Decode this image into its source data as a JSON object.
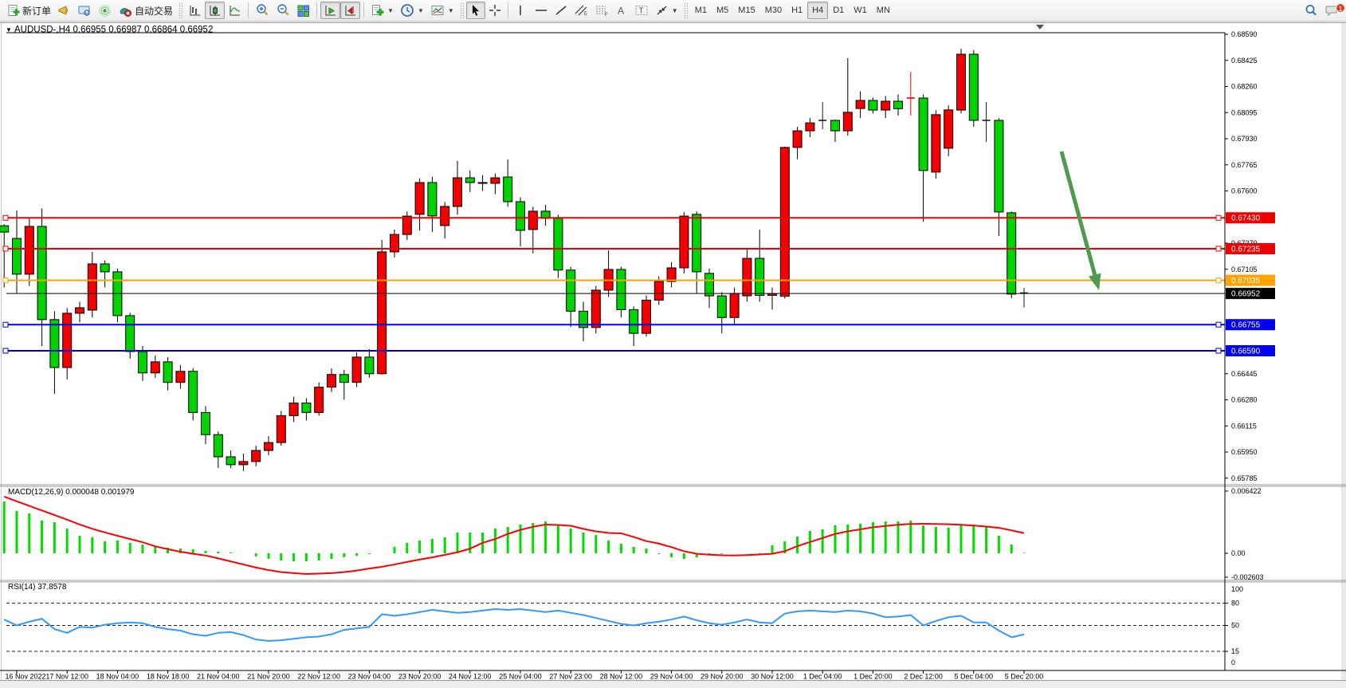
{
  "toolbar": {
    "new_order_label": "新订单",
    "autotrading_label": "自动交易",
    "timeframes": [
      "M1",
      "M5",
      "M15",
      "M30",
      "H1",
      "H4",
      "D1",
      "W1",
      "MN"
    ],
    "active_timeframe": "H4",
    "chat_badge": "1"
  },
  "chart": {
    "title": {
      "dropdown": "▼",
      "symbol": "AUDUSD-,H4",
      "open": "0.66955",
      "high": "0.66987",
      "low": "0.66864",
      "close": "0.66952"
    },
    "price_axis": {
      "ticks": [
        "0.68590",
        "0.68425",
        "0.68260",
        "0.68095",
        "0.67930",
        "0.67765",
        "0.67600",
        "0.67270",
        "0.67105",
        "0.66445",
        "0.66280",
        "0.66115",
        "0.65950",
        "0.65785"
      ]
    },
    "hlines": [
      {
        "price": 0.6743,
        "label": "0.67430",
        "color": "#ee0000",
        "type": "resistance"
      },
      {
        "price": 0.67235,
        "label": "0.67235",
        "color": "#ee0000",
        "type": "resistance"
      },
      {
        "price": 0.67035,
        "label": "0.67035",
        "color": "#ffa200",
        "type": "pivot"
      },
      {
        "price": 0.66755,
        "label": "0.66755",
        "color": "#0000ee",
        "type": "support"
      },
      {
        "price": 0.6659,
        "label": "0.66590",
        "color": "#0000ee",
        "type": "support"
      }
    ],
    "current_price": {
      "price": 0.66952,
      "label": "0.66952"
    },
    "candles": [
      [
        0.6738,
        0.6739,
        0.6699,
        0.6734
      ],
      [
        0.673,
        0.67477,
        0.6695,
        0.67074
      ],
      [
        0.67074,
        0.6743,
        0.67,
        0.67376
      ],
      [
        0.67376,
        0.6749,
        0.6662,
        0.66787
      ],
      [
        0.66787,
        0.6684,
        0.66318,
        0.66484
      ],
      [
        0.66484,
        0.6686,
        0.66409,
        0.66827
      ],
      [
        0.66827,
        0.669,
        0.6677,
        0.66862
      ],
      [
        0.66847,
        0.67215,
        0.668,
        0.67139
      ],
      [
        0.67139,
        0.6716,
        0.6699,
        0.67089
      ],
      [
        0.67089,
        0.6711,
        0.6677,
        0.66812
      ],
      [
        0.66812,
        0.6683,
        0.6654,
        0.66585
      ],
      [
        0.66585,
        0.6662,
        0.664,
        0.6645
      ],
      [
        0.6645,
        0.6656,
        0.6642,
        0.6652
      ],
      [
        0.6652,
        0.6655,
        0.6634,
        0.6639
      ],
      [
        0.6639,
        0.665,
        0.6635,
        0.6646
      ],
      [
        0.6646,
        0.6648,
        0.6615,
        0.662
      ],
      [
        0.662,
        0.6624,
        0.66,
        0.6606
      ],
      [
        0.6606,
        0.6608,
        0.6585,
        0.6592
      ],
      [
        0.6592,
        0.6596,
        0.65848,
        0.6587
      ],
      [
        0.6587,
        0.6594,
        0.6583,
        0.6589
      ],
      [
        0.6589,
        0.6599,
        0.6586,
        0.6596
      ],
      [
        0.6596,
        0.6605,
        0.6593,
        0.6601
      ],
      [
        0.6601,
        0.6621,
        0.6599,
        0.6618
      ],
      [
        0.6618,
        0.663,
        0.6614,
        0.6626
      ],
      [
        0.6626,
        0.6629,
        0.6615,
        0.662
      ],
      [
        0.662,
        0.6639,
        0.6618,
        0.6636
      ],
      [
        0.6636,
        0.6648,
        0.6633,
        0.6644
      ],
      [
        0.6644,
        0.6647,
        0.6628,
        0.6639
      ],
      [
        0.6639,
        0.6658,
        0.6636,
        0.6655
      ],
      [
        0.6655,
        0.666,
        0.6642,
        0.66445
      ],
      [
        0.66445,
        0.6729,
        0.6644,
        0.67215
      ],
      [
        0.67215,
        0.67356,
        0.6718,
        0.67325
      ],
      [
        0.67325,
        0.6747,
        0.6729,
        0.67441
      ],
      [
        0.67452,
        0.6768,
        0.6735,
        0.67653
      ],
      [
        0.67653,
        0.6769,
        0.67341,
        0.67442
      ],
      [
        0.67381,
        0.6753,
        0.673,
        0.67502
      ],
      [
        0.67502,
        0.6779,
        0.6745,
        0.67683
      ],
      [
        0.67683,
        0.67729,
        0.67593,
        0.67653
      ],
      [
        0.67653,
        0.677,
        0.676,
        0.67648
      ],
      [
        0.67648,
        0.6771,
        0.6758,
        0.67683
      ],
      [
        0.67688,
        0.67799,
        0.675,
        0.67532
      ],
      [
        0.67532,
        0.6756,
        0.6725,
        0.67351
      ],
      [
        0.67356,
        0.675,
        0.67205,
        0.67472
      ],
      [
        0.67472,
        0.67512,
        0.6738,
        0.67427
      ],
      [
        0.67427,
        0.6745,
        0.6705,
        0.671
      ],
      [
        0.671,
        0.6712,
        0.6674,
        0.6684
      ],
      [
        0.6684,
        0.669,
        0.6665,
        0.66737
      ],
      [
        0.66737,
        0.67,
        0.667,
        0.66973
      ],
      [
        0.66973,
        0.67225,
        0.6693,
        0.67104
      ],
      [
        0.67104,
        0.6712,
        0.668,
        0.6685
      ],
      [
        0.6685,
        0.6687,
        0.6662,
        0.667
      ],
      [
        0.667,
        0.6694,
        0.6668,
        0.6691
      ],
      [
        0.6691,
        0.6706,
        0.6688,
        0.67028
      ],
      [
        0.67028,
        0.6715,
        0.6699,
        0.67114
      ],
      [
        0.67114,
        0.67466,
        0.67079,
        0.67441
      ],
      [
        0.67452,
        0.67471,
        0.66952,
        0.67089
      ],
      [
        0.67079,
        0.6711,
        0.6686,
        0.66937
      ],
      [
        0.66937,
        0.6696,
        0.667,
        0.668
      ],
      [
        0.668,
        0.6699,
        0.6675,
        0.66952
      ],
      [
        0.66937,
        0.6723,
        0.669,
        0.67174
      ],
      [
        0.67174,
        0.67356,
        0.669,
        0.6694
      ],
      [
        0.6694,
        0.6699,
        0.6685,
        0.6695
      ],
      [
        0.66934,
        0.6788,
        0.6692,
        0.67875
      ],
      [
        0.67875,
        0.68006,
        0.678,
        0.6798
      ],
      [
        0.6798,
        0.6806,
        0.6794,
        0.6803
      ],
      [
        0.68046,
        0.68162,
        0.6799,
        0.68046
      ],
      [
        0.68046,
        0.6805,
        0.6791,
        0.6798
      ],
      [
        0.6798,
        0.68439,
        0.6795,
        0.68097
      ],
      [
        0.68121,
        0.6823,
        0.6806,
        0.68172
      ],
      [
        0.68172,
        0.6819,
        0.6809,
        0.68111
      ],
      [
        0.68111,
        0.682,
        0.6806,
        0.68167
      ],
      [
        0.68167,
        0.6821,
        0.68076,
        0.6812
      ],
      [
        0.68187,
        0.68353,
        0.68076,
        0.68187
      ],
      [
        0.68187,
        0.6821,
        0.67406,
        0.67729
      ],
      [
        0.67719,
        0.6811,
        0.67678,
        0.68082
      ],
      [
        0.6787,
        0.6814,
        0.6782,
        0.68112
      ],
      [
        0.68111,
        0.68499,
        0.6809,
        0.68464
      ],
      [
        0.68464,
        0.6849,
        0.68005,
        0.68046
      ],
      [
        0.68046,
        0.68162,
        0.6791,
        0.68046
      ],
      [
        0.68046,
        0.6806,
        0.67315,
        0.67467
      ],
      [
        0.67462,
        0.6747,
        0.66922,
        0.66948
      ],
      [
        0.66955,
        0.66987,
        0.66864,
        0.66952
      ]
    ],
    "dark_dojis": [
      65,
      78,
      81
    ],
    "arrow": {
      "from": [
        1332,
        189
      ],
      "to": [
        1379,
        363
      ]
    },
    "shift_marker": [
      1305,
      30
    ],
    "macd": {
      "name": "MACD(12,26,9)",
      "main_value": "0.000048",
      "signal_value": "0.001979",
      "axis": [
        "0.006422",
        "0.00",
        "-0.002603"
      ],
      "histogram": [
        0.00509,
        0.00415,
        0.00392,
        0.00321,
        0.00305,
        0.00243,
        0.00172,
        0.00157,
        0.00117,
        0.00125,
        0.00102,
        0.00086,
        0.0007,
        0.00055,
        0.00047,
        0.00039,
        0.00023,
        0.00016,
        8e-05,
        0.0,
        -0.00031,
        -0.00055,
        -0.0007,
        -0.00078,
        -0.00078,
        -0.0007,
        -0.00055,
        -0.00039,
        -0.00023,
        -8e-05,
        0.0,
        0.00063,
        0.00102,
        0.00125,
        0.00141,
        0.00157,
        0.00204,
        0.00204,
        0.00204,
        0.00243,
        0.00258,
        0.00282,
        0.00298,
        0.00313,
        0.00282,
        0.00243,
        0.00204,
        0.0018,
        0.00125,
        0.00094,
        0.00063,
        0.00047,
        -8e-05,
        -0.00039,
        -0.00055,
        -0.00039,
        -0.00016,
        -8e-05,
        0.0,
        0.0,
        -8e-05,
        0.00078,
        0.00117,
        0.00164,
        0.00219,
        0.00235,
        0.00274,
        0.00282,
        0.0029,
        0.00305,
        0.00313,
        0.00313,
        0.00321,
        0.00274,
        0.00258,
        0.00251,
        0.00282,
        0.00282,
        0.00258,
        0.00172,
        0.00086,
        5e-05
      ],
      "signal": [
        0.00556,
        0.0051,
        0.00465,
        0.0042,
        0.00375,
        0.0033,
        0.00282,
        0.0024,
        0.00205,
        0.00172,
        0.0014,
        0.00108,
        0.00068,
        0.0004,
        0.00015,
        -5e-05,
        -0.00022,
        -0.0005,
        -0.0008,
        -0.0011,
        -0.0014,
        -0.00165,
        -0.00185,
        -0.00195,
        -0.00204,
        -0.002,
        -0.00195,
        -0.00185,
        -0.0017,
        -0.0015,
        -0.00133,
        -0.0011,
        -0.00085,
        -0.00062,
        -0.0004,
        -0.00016,
        0.0001,
        0.00045,
        0.00102,
        0.0014,
        0.0019,
        0.0023,
        0.0026,
        0.00282,
        0.00278,
        0.0027,
        0.0024,
        0.00215,
        0.002,
        0.00196,
        0.0016,
        0.0012,
        0.00095,
        0.0006,
        0.0002,
        -5e-05,
        -0.00014,
        -0.0002,
        -0.00022,
        -0.00018,
        -0.00012,
        -5e-05,
        0.0002,
        0.0007,
        0.0011,
        0.0015,
        0.0019,
        0.00215,
        0.00235,
        0.00255,
        0.00268,
        0.0028,
        0.00288,
        0.0029,
        0.00288,
        0.00285,
        0.0028,
        0.00272,
        0.00262,
        0.0025,
        0.00225,
        0.00198
      ]
    },
    "rsi": {
      "name": "RSI(14)",
      "value": "37.8578",
      "axis": [
        "100",
        "80",
        "50",
        "15",
        "0"
      ],
      "levels": [
        80,
        50,
        15
      ],
      "series": [
        58,
        50,
        55,
        59,
        45,
        40,
        48,
        47,
        51,
        53,
        54,
        53,
        48,
        45,
        43,
        38,
        36,
        40,
        41,
        37,
        31,
        29,
        30,
        32,
        34,
        35,
        38,
        44,
        46,
        48,
        65,
        63,
        65,
        68,
        71,
        69,
        67,
        68,
        70,
        72,
        71,
        72,
        70,
        68,
        70,
        67,
        64,
        60,
        56,
        52,
        50,
        53,
        55,
        58,
        62,
        57,
        53,
        51,
        54,
        58,
        54,
        53,
        66,
        69,
        70,
        69,
        68,
        70,
        69,
        66,
        61,
        62,
        64,
        50,
        56,
        61,
        63,
        54,
        54,
        43,
        34,
        37.9
      ]
    },
    "time_axis": [
      "16 Nov 2022",
      "17 Nov 12:00",
      "18 Nov 04:00",
      "18 Nov 18:00",
      "21 Nov 04:00",
      "21 Nov 20:00",
      "22 Nov 12:00",
      "23 Nov 04:00",
      "23 Nov 20:00",
      "24 Nov 12:00",
      "25 Nov 04:00",
      "27 Nov 23:00",
      "28 Nov 12:00",
      "29 Nov 04:00",
      "29 Nov 20:00",
      "30 Nov 12:00",
      "1 Dec 04:00",
      "1 Dec 20:00",
      "2 Dec 12:00",
      "5 Dec 04:00",
      "5 Dec 20:00"
    ],
    "colors": {
      "bull": "#f40000",
      "bear": "#00d300",
      "wick": "#000000",
      "macd_hist": "#00dd00",
      "macd_signal": "#ff0000",
      "rsi_line": "#3399ff",
      "arrow": "#4e9a4e",
      "dark": "#1a1a1a"
    }
  }
}
